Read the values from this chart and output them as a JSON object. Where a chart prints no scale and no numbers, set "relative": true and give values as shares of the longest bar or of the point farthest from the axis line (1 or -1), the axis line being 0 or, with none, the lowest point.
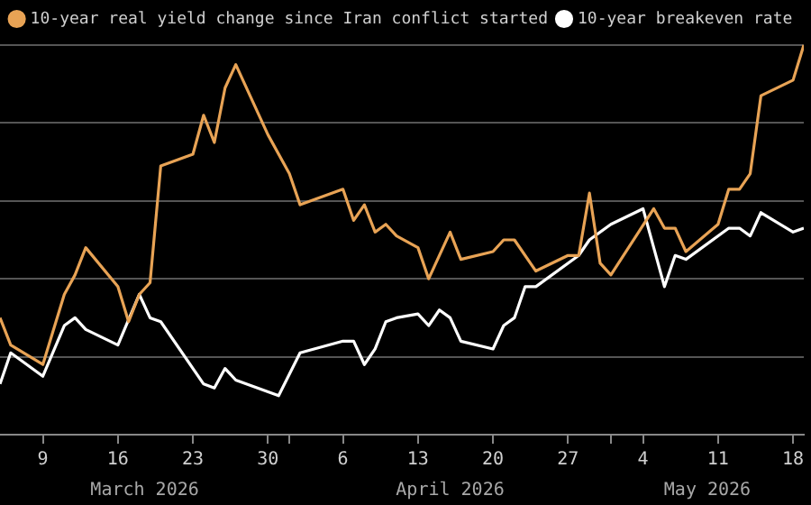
{
  "chart_data": {
    "type": "line",
    "relative": true,
    "grid": "y",
    "legend": "top",
    "marker": "none",
    "line_style": "solid",
    "xlim": [
      "2026-03-05",
      "2026-05-19"
    ],
    "xticks": [
      {
        "value": "2026-03-09",
        "label": "9"
      },
      {
        "value": "2026-03-16",
        "label": "16"
      },
      {
        "value": "2026-03-23",
        "label": "23"
      },
      {
        "value": "2026-03-30",
        "label": "30"
      },
      {
        "value": "2026-04-01",
        "label": null
      },
      {
        "value": "2026-04-06",
        "label": "6"
      },
      {
        "value": "2026-04-13",
        "label": "13"
      },
      {
        "value": "2026-04-20",
        "label": "20"
      },
      {
        "value": "2026-04-27",
        "label": "27"
      },
      {
        "value": "2026-05-01",
        "label": null
      },
      {
        "value": "2026-05-04",
        "label": "4"
      },
      {
        "value": "2026-05-11",
        "label": "11"
      },
      {
        "value": "2026-05-18",
        "label": "18"
      }
    ],
    "annotations": [
      "March 2026",
      "April 2026",
      "May 2026"
    ],
    "series": [
      {
        "name": "10-year real yield change since Iran conflict started",
        "color": "#e8a355",
        "x": [
          "2026-03-05",
          "2026-03-06",
          "2026-03-09",
          "2026-03-11",
          "2026-03-12",
          "2026-03-13",
          "2026-03-16",
          "2026-03-17",
          "2026-03-18",
          "2026-03-19",
          "2026-03-20",
          "2026-03-23",
          "2026-03-24",
          "2026-03-25",
          "2026-03-26",
          "2026-03-27",
          "2026-03-30",
          "2026-04-01",
          "2026-04-02",
          "2026-04-06",
          "2026-04-07",
          "2026-04-08",
          "2026-04-09",
          "2026-04-10",
          "2026-04-11",
          "2026-04-13",
          "2026-04-14",
          "2026-04-16",
          "2026-04-17",
          "2026-04-20",
          "2026-04-21",
          "2026-04-22",
          "2026-04-24",
          "2026-04-27",
          "2026-04-28",
          "2026-04-29",
          "2026-04-30",
          "2026-05-01",
          "2026-05-05",
          "2026-05-06",
          "2026-05-07",
          "2026-05-08",
          "2026-05-11",
          "2026-05-12",
          "2026-05-13",
          "2026-05-14",
          "2026-05-15",
          "2026-05-18",
          "2026-05-19"
        ],
        "values": [
          0.3,
          0.23,
          0.18,
          0.36,
          0.41,
          0.48,
          0.38,
          0.29,
          0.36,
          0.39,
          0.69,
          0.72,
          0.82,
          0.75,
          0.89,
          0.95,
          0.77,
          0.67,
          0.59,
          0.63,
          0.55,
          0.59,
          0.52,
          0.54,
          0.51,
          0.48,
          0.4,
          0.52,
          0.45,
          0.47,
          0.5,
          0.5,
          0.42,
          0.46,
          0.46,
          0.62,
          0.44,
          0.41,
          0.58,
          0.53,
          0.53,
          0.47,
          0.54,
          0.63,
          0.63,
          0.67,
          0.87,
          0.91,
          1.0
        ]
      },
      {
        "name": "10-year breakeven rate",
        "color": "#ffffff",
        "x": [
          "2026-03-05",
          "2026-03-06",
          "2026-03-09",
          "2026-03-11",
          "2026-03-12",
          "2026-03-13",
          "2026-03-16",
          "2026-03-18",
          "2026-03-19",
          "2026-03-20",
          "2026-03-24",
          "2026-03-25",
          "2026-03-26",
          "2026-03-27",
          "2026-03-31",
          "2026-04-02",
          "2026-04-06",
          "2026-04-07",
          "2026-04-08",
          "2026-04-09",
          "2026-04-10",
          "2026-04-11",
          "2026-04-13",
          "2026-04-14",
          "2026-04-15",
          "2026-04-16",
          "2026-04-17",
          "2026-04-20",
          "2026-04-21",
          "2026-04-22",
          "2026-04-23",
          "2026-04-24",
          "2026-04-28",
          "2026-04-29",
          "2026-05-01",
          "2026-05-04",
          "2026-05-06",
          "2026-05-07",
          "2026-05-08",
          "2026-05-12",
          "2026-05-13",
          "2026-05-14",
          "2026-05-15",
          "2026-05-18",
          "2026-05-19"
        ],
        "values": [
          0.13,
          0.21,
          0.15,
          0.28,
          0.3,
          0.27,
          0.23,
          0.36,
          0.3,
          0.29,
          0.13,
          0.12,
          0.17,
          0.14,
          0.1,
          0.21,
          0.24,
          0.24,
          0.18,
          0.22,
          0.29,
          0.3,
          0.31,
          0.28,
          0.32,
          0.3,
          0.24,
          0.22,
          0.28,
          0.3,
          0.38,
          0.38,
          0.46,
          0.5,
          0.54,
          0.58,
          0.38,
          0.46,
          0.45,
          0.53,
          0.53,
          0.51,
          0.57,
          0.52,
          0.53
        ]
      }
    ]
  }
}
